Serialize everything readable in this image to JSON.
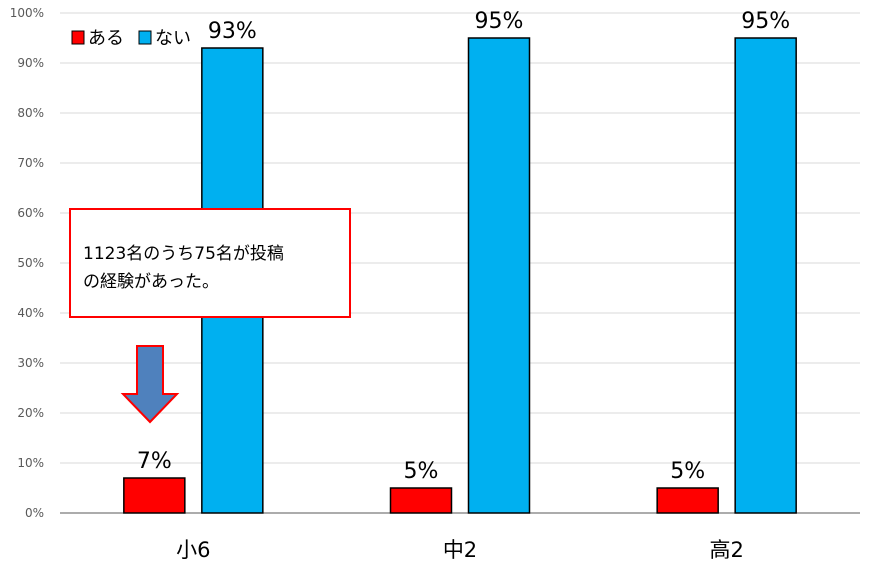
{
  "chart_data": {
    "type": "bar",
    "categories": [
      "小6",
      "中2",
      "高2"
    ],
    "series": [
      {
        "name": "ある",
        "color": "#ff0000",
        "values": [
          7,
          5,
          5
        ],
        "labels": [
          "7%",
          "5%",
          "5%"
        ]
      },
      {
        "name": "ない",
        "color": "#00b0f0",
        "values": [
          93,
          95,
          95
        ],
        "labels": [
          "93%",
          "95%",
          "95%"
        ]
      }
    ],
    "ylim": [
      0,
      100
    ],
    "y_ticks": [
      0,
      10,
      20,
      30,
      40,
      50,
      60,
      70,
      80,
      90,
      100
    ],
    "y_tick_labels": [
      "0%",
      "10%",
      "20%",
      "30%",
      "40%",
      "50%",
      "60%",
      "70%",
      "80%",
      "90%",
      "100%"
    ],
    "grid": true,
    "legend_position": "top-left",
    "annotation": {
      "lines": [
        "1123名のうち75名が投稿",
        "の経験があった。"
      ],
      "border_color": "#ff0000",
      "arrow_fill": "#4f81bd",
      "arrow_stroke": "#ff0000"
    }
  }
}
